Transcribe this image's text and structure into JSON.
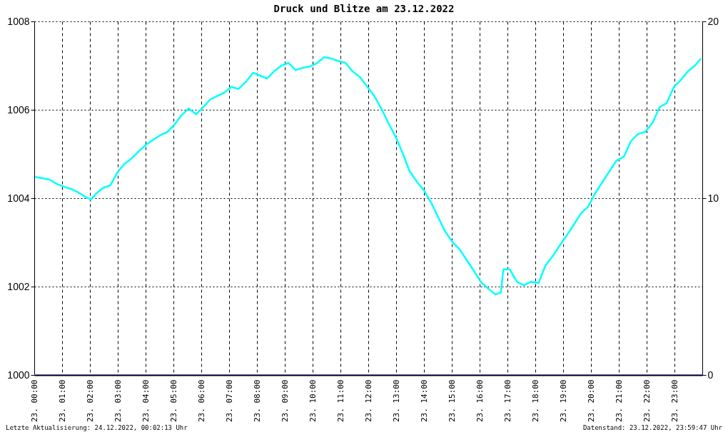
{
  "chart_data": {
    "type": "line",
    "title": "Druck und Blitze am 23.12.2022",
    "annotations": [
      "Letzte Aktualisierung: 24.12.2022, 00:02:13 Uhr",
      "Datenstand: 23.12.2022, 23:59:47 Uhr"
    ],
    "xlim": [
      "2022-12-23T00:00",
      "2022-12-24T00:00"
    ],
    "xticks": [
      {
        "value": "2022-12-23T00:00",
        "label": "23. 00:00"
      },
      {
        "value": "2022-12-23T01:00",
        "label": "23. 01:00"
      },
      {
        "value": "2022-12-23T02:00",
        "label": "23. 02:00"
      },
      {
        "value": "2022-12-23T03:00",
        "label": "23. 03:00"
      },
      {
        "value": "2022-12-23T04:00",
        "label": "23. 04:00"
      },
      {
        "value": "2022-12-23T05:00",
        "label": "23. 05:00"
      },
      {
        "value": "2022-12-23T06:00",
        "label": "23. 06:00"
      },
      {
        "value": "2022-12-23T07:00",
        "label": "23. 07:00"
      },
      {
        "value": "2022-12-23T08:00",
        "label": "23. 08:00"
      },
      {
        "value": "2022-12-23T09:00",
        "label": "23. 09:00"
      },
      {
        "value": "2022-12-23T10:00",
        "label": "23. 10:00"
      },
      {
        "value": "2022-12-23T11:00",
        "label": "23. 11:00"
      },
      {
        "value": "2022-12-23T12:00",
        "label": "23. 12:00"
      },
      {
        "value": "2022-12-23T13:00",
        "label": "23. 13:00"
      },
      {
        "value": "2022-12-23T14:00",
        "label": "23. 14:00"
      },
      {
        "value": "2022-12-23T15:00",
        "label": "23. 15:00"
      },
      {
        "value": "2022-12-23T16:00",
        "label": "23. 16:00"
      },
      {
        "value": "2022-12-23T17:00",
        "label": "23. 17:00"
      },
      {
        "value": "2022-12-23T18:00",
        "label": "23. 18:00"
      },
      {
        "value": "2022-12-23T19:00",
        "label": "23. 19:00"
      },
      {
        "value": "2022-12-23T20:00",
        "label": "23. 20:00"
      },
      {
        "value": "2022-12-23T21:00",
        "label": "23. 21:00"
      },
      {
        "value": "2022-12-23T22:00",
        "label": "23. 22:00"
      },
      {
        "value": "2022-12-23T23:00",
        "label": "23. 23:00"
      }
    ],
    "ylim": [
      1000,
      1008
    ],
    "yticks": [
      1000,
      1002,
      1004,
      1006,
      1008
    ],
    "y2lim": [
      0,
      20
    ],
    "y2ticks": [
      0,
      10,
      20
    ],
    "grid": true,
    "series": [
      {
        "color": "#00ffff",
        "x": [
          "2022-12-23T00:02",
          "2022-12-23T00:17",
          "2022-12-23T00:33",
          "2022-12-23T00:49",
          "2022-12-23T01:04",
          "2022-12-23T01:19",
          "2022-12-23T01:35",
          "2022-12-23T01:50",
          "2022-12-23T02:02",
          "2022-12-23T02:13",
          "2022-12-23T02:28",
          "2022-12-23T02:44",
          "2022-12-23T02:59",
          "2022-12-23T03:14",
          "2022-12-23T03:30",
          "2022-12-23T03:45",
          "2022-12-23T04:01",
          "2022-12-23T04:16",
          "2022-12-23T04:31",
          "2022-12-23T04:47",
          "2022-12-23T05:02",
          "2022-12-23T05:17",
          "2022-12-23T05:33",
          "2022-12-23T05:49",
          "2022-12-23T06:04",
          "2022-12-23T06:19",
          "2022-12-23T06:34",
          "2022-12-23T06:50",
          "2022-12-23T07:05",
          "2022-12-23T07:20",
          "2022-12-23T07:36",
          "2022-12-23T07:52",
          "2022-12-23T08:07",
          "2022-12-23T08:22",
          "2022-12-23T08:37",
          "2022-12-23T08:53",
          "2022-12-23T09:08",
          "2022-12-23T09:23",
          "2022-12-23T09:39",
          "2022-12-23T09:55",
          "2022-12-23T10:10",
          "2022-12-23T10:25",
          "2022-12-23T10:40",
          "2022-12-23T10:56",
          "2022-12-23T11:11",
          "2022-12-23T11:26",
          "2022-12-23T11:42",
          "2022-12-23T11:58",
          "2022-12-23T12:13",
          "2022-12-23T12:28",
          "2022-12-23T12:43",
          "2022-12-23T12:59",
          "2022-12-23T13:14",
          "2022-12-23T13:29",
          "2022-12-23T13:45",
          "2022-12-23T14:01",
          "2022-12-23T14:16",
          "2022-12-23T14:31",
          "2022-12-23T14:46",
          "2022-12-23T15:02",
          "2022-12-23T15:17",
          "2022-12-23T15:32",
          "2022-12-23T15:48",
          "2022-12-23T16:03",
          "2022-12-23T16:19",
          "2022-12-23T16:34",
          "2022-12-23T16:46",
          "2022-12-23T16:51",
          "2022-12-23T17:05",
          "2022-12-23T17:20",
          "2022-12-23T17:35",
          "2022-12-23T17:51",
          "2022-12-23T18:07",
          "2022-12-23T18:22",
          "2022-12-23T18:37",
          "2022-12-23T18:52",
          "2022-12-23T19:08",
          "2022-12-23T19:23",
          "2022-12-23T19:38",
          "2022-12-23T19:54",
          "2022-12-23T20:10",
          "2022-12-23T20:25",
          "2022-12-23T20:40",
          "2022-12-23T20:55",
          "2022-12-23T21:11",
          "2022-12-23T21:26",
          "2022-12-23T21:41",
          "2022-12-23T21:57",
          "2022-12-23T22:13",
          "2022-12-23T22:28",
          "2022-12-23T22:43",
          "2022-12-23T22:59",
          "2022-12-23T23:14",
          "2022-12-23T23:29",
          "2022-12-23T23:44",
          "2022-12-23T23:57"
        ],
        "values": [
          1004.48,
          1004.45,
          1004.42,
          1004.32,
          1004.26,
          1004.21,
          1004.13,
          1004.03,
          1003.97,
          1004.1,
          1004.23,
          1004.29,
          1004.58,
          1004.77,
          1004.9,
          1005.06,
          1005.21,
          1005.32,
          1005.42,
          1005.5,
          1005.66,
          1005.87,
          1006.03,
          1005.9,
          1006.06,
          1006.23,
          1006.31,
          1006.39,
          1006.52,
          1006.47,
          1006.63,
          1006.84,
          1006.77,
          1006.71,
          1006.87,
          1007.0,
          1007.06,
          1006.9,
          1006.95,
          1006.98,
          1007.06,
          1007.19,
          1007.16,
          1007.1,
          1007.06,
          1006.87,
          1006.74,
          1006.52,
          1006.31,
          1006.03,
          1005.71,
          1005.39,
          1005.02,
          1004.61,
          1004.37,
          1004.16,
          1003.89,
          1003.56,
          1003.24,
          1003.0,
          1002.84,
          1002.6,
          1002.35,
          1002.1,
          1001.95,
          1001.82,
          1001.87,
          1002.39,
          1002.39,
          1002.11,
          1002.03,
          1002.11,
          1002.08,
          1002.48,
          1002.68,
          1002.92,
          1003.16,
          1003.4,
          1003.65,
          1003.81,
          1004.13,
          1004.37,
          1004.61,
          1004.85,
          1004.94,
          1005.29,
          1005.45,
          1005.5,
          1005.71,
          1006.06,
          1006.15,
          1006.52,
          1006.68,
          1006.87,
          1007.0,
          1007.16
        ]
      },
      {
        "color": "#6a5acd",
        "axis": "y2",
        "x": [
          "2022-12-23T00:00",
          "2022-12-24T00:00"
        ],
        "values": [
          0,
          0
        ]
      }
    ]
  }
}
